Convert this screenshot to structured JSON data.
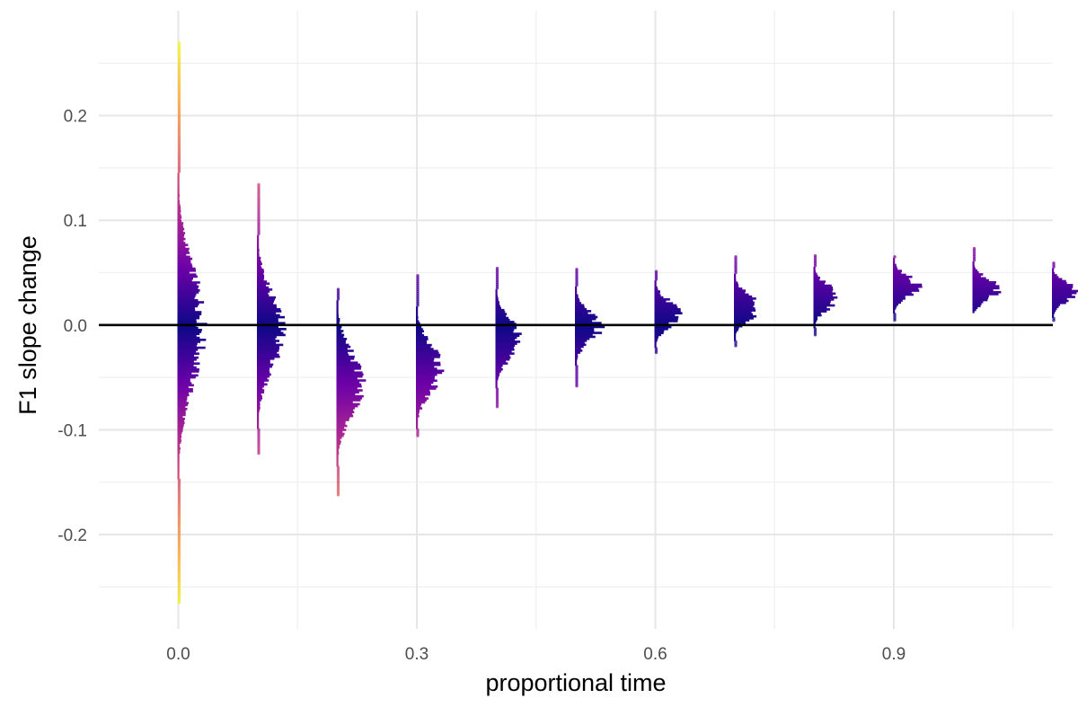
{
  "chart_data": {
    "type": "histogram",
    "title": "",
    "xlabel": "proportional time",
    "ylabel": "F1 slope change",
    "xlim": [
      -0.1,
      1.1
    ],
    "ylim": [
      -0.29,
      0.3
    ],
    "x_ticks": [
      0.0,
      0.3,
      0.6,
      0.9
    ],
    "x_tick_labels": [
      "0.0",
      "0.3",
      "0.6",
      "0.9"
    ],
    "y_ticks": [
      -0.2,
      -0.1,
      0.0,
      0.1,
      0.2
    ],
    "y_tick_labels": [
      "-0.2",
      "-0.1",
      "0.0",
      "0.1",
      "0.2"
    ],
    "grid": true,
    "legend": "none",
    "reference_line_y": 0.0,
    "color_scale": [
      "#0d0887",
      "#6a00a8",
      "#b12a90",
      "#e16462",
      "#fca636",
      "#f0f921"
    ],
    "distributions": [
      {
        "x": 0.0,
        "center": 0.0,
        "spread": 0.055,
        "min": -0.265,
        "max": 0.27
      },
      {
        "x": 0.1,
        "center": -0.005,
        "spread": 0.035,
        "min": -0.123,
        "max": 0.135
      },
      {
        "x": 0.2,
        "center": -0.055,
        "spread": 0.03,
        "min": -0.163,
        "max": 0.035
      },
      {
        "x": 0.3,
        "center": -0.04,
        "spread": 0.022,
        "min": -0.105,
        "max": 0.048
      },
      {
        "x": 0.4,
        "center": -0.012,
        "spread": 0.018,
        "min": -0.078,
        "max": 0.055
      },
      {
        "x": 0.5,
        "center": 0.0,
        "spread": 0.014,
        "min": -0.058,
        "max": 0.054
      },
      {
        "x": 0.6,
        "center": 0.012,
        "spread": 0.012,
        "min": -0.027,
        "max": 0.052
      },
      {
        "x": 0.7,
        "center": 0.018,
        "spread": 0.012,
        "min": -0.02,
        "max": 0.066
      },
      {
        "x": 0.8,
        "center": 0.028,
        "spread": 0.011,
        "min": -0.01,
        "max": 0.067
      },
      {
        "x": 0.9,
        "center": 0.038,
        "spread": 0.01,
        "min": 0.005,
        "max": 0.066
      },
      {
        "x": 1.0,
        "center": 0.035,
        "spread": 0.01,
        "min": 0.012,
        "max": 0.074
      },
      {
        "x": 1.1,
        "center": 0.032,
        "spread": 0.009,
        "min": 0.005,
        "max": 0.06
      }
    ]
  }
}
